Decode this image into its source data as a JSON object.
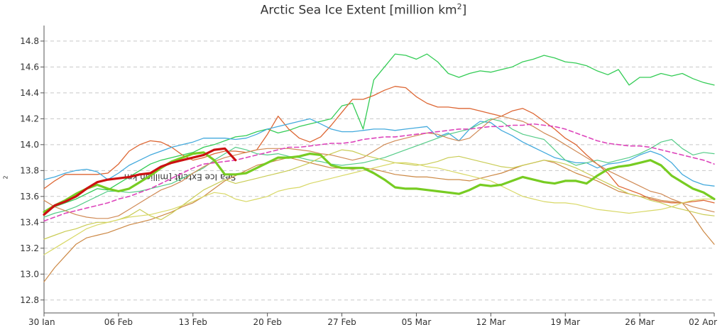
{
  "chart_data": {
    "type": "line",
    "title": "Arctic Sea Ice Extent [million km",
    "title_sup": "2",
    "title_end": "]",
    "ylabel": "Sea Ice Extent [million km",
    "ylabel_sup": "2",
    "ylabel_end": "]",
    "ylim": [
      12.7,
      14.92
    ],
    "xlim": [
      0,
      63
    ],
    "grid": true,
    "yticks": [
      12.8,
      13.0,
      13.2,
      13.4,
      13.6,
      13.8,
      14.0,
      14.2,
      14.4,
      14.6,
      14.8
    ],
    "xticks": [
      {
        "x": 0,
        "label": "30 Jan"
      },
      {
        "x": 7,
        "label": "06 Feb"
      },
      {
        "x": 14,
        "label": "13 Feb"
      },
      {
        "x": 21,
        "label": "20 Feb"
      },
      {
        "x": 28,
        "label": "27 Feb"
      },
      {
        "x": 35,
        "label": "05 Mar"
      },
      {
        "x": 42,
        "label": "12 Mar"
      },
      {
        "x": 49,
        "label": "19 Mar"
      },
      {
        "x": 56,
        "label": "26 Mar"
      },
      {
        "x": 63,
        "label": "02 Apr"
      }
    ],
    "series": [
      {
        "color": "#33cc55",
        "width": 1.3,
        "dash": "",
        "values": [
          13.47,
          13.52,
          13.55,
          13.58,
          13.62,
          13.66,
          13.65,
          13.7,
          13.75,
          13.8,
          13.85,
          13.88,
          13.9,
          13.92,
          13.94,
          13.98,
          14.0,
          14.03,
          14.06,
          14.07,
          14.1,
          14.12,
          14.09,
          14.11,
          14.14,
          14.16,
          14.18,
          14.2,
          14.3,
          14.32,
          14.12,
          14.5,
          14.6,
          14.7,
          14.69,
          14.66,
          14.7,
          14.64,
          14.55,
          14.52,
          14.55,
          14.57,
          14.56,
          14.58,
          14.6,
          14.64,
          14.66,
          14.69,
          14.67,
          14.64,
          14.63,
          14.61,
          14.57,
          14.54,
          14.58,
          14.46,
          14.52,
          14.52,
          14.55,
          14.53,
          14.55,
          14.51,
          14.48,
          14.46
        ]
      },
      {
        "color": "#dd6633",
        "width": 1.3,
        "dash": "",
        "values": [
          13.66,
          13.72,
          13.77,
          13.77,
          13.77,
          13.77,
          13.78,
          13.85,
          13.95,
          14.0,
          14.03,
          14.02,
          13.98,
          13.92,
          13.88,
          13.9,
          13.93,
          13.95,
          13.95,
          13.94,
          13.96,
          14.08,
          14.22,
          14.12,
          14.05,
          14.02,
          14.06,
          14.15,
          14.25,
          14.35,
          14.35,
          14.38,
          14.42,
          14.45,
          14.44,
          14.37,
          14.32,
          14.29,
          14.29,
          14.28,
          14.28,
          14.26,
          14.24,
          14.22,
          14.26,
          14.28,
          14.24,
          14.18,
          14.12,
          14.05,
          14.0,
          13.92,
          13.85,
          13.78,
          13.68,
          13.65,
          13.62,
          13.58,
          13.56,
          13.55,
          13.55,
          13.56,
          13.57,
          13.55
        ]
      },
      {
        "color": "#44aadd",
        "width": 1.3,
        "dash": "",
        "values": [
          13.73,
          13.75,
          13.78,
          13.8,
          13.81,
          13.79,
          13.73,
          13.78,
          13.84,
          13.88,
          13.92,
          13.95,
          13.98,
          14.0,
          14.02,
          14.05,
          14.05,
          14.05,
          14.04,
          14.05,
          14.08,
          14.12,
          14.14,
          14.16,
          14.18,
          14.2,
          14.16,
          14.12,
          14.1,
          14.1,
          14.11,
          14.12,
          14.12,
          14.11,
          14.12,
          14.13,
          14.14,
          14.06,
          14.09,
          14.03,
          14.12,
          14.18,
          14.17,
          14.11,
          14.07,
          14.02,
          13.98,
          13.94,
          13.9,
          13.88,
          13.86,
          13.86,
          13.82,
          13.85,
          13.86,
          13.88,
          13.92,
          13.95,
          13.92,
          13.86,
          13.77,
          13.72,
          13.69,
          13.68
        ]
      },
      {
        "color": "#55cc88",
        "width": 1.2,
        "dash": "",
        "values": [
          13.44,
          13.47,
          13.49,
          13.52,
          13.56,
          13.6,
          13.64,
          13.64,
          13.63,
          13.64,
          13.66,
          13.68,
          13.7,
          13.74,
          13.78,
          13.82,
          13.88,
          13.93,
          13.98,
          13.96,
          13.93,
          13.92,
          13.93,
          13.91,
          13.9,
          13.88,
          13.87,
          13.85,
          13.84,
          13.85,
          13.86,
          13.88,
          13.9,
          13.93,
          13.96,
          13.99,
          14.02,
          14.05,
          14.08,
          14.1,
          14.12,
          14.16,
          14.2,
          14.18,
          14.12,
          14.08,
          14.06,
          14.04,
          13.96,
          13.88,
          13.84,
          13.86,
          13.88,
          13.86,
          13.88,
          13.9,
          13.93,
          13.97,
          14.02,
          14.04,
          13.97,
          13.92,
          13.94,
          13.93
        ]
      },
      {
        "color": "#cc8844",
        "width": 1.2,
        "dash": "",
        "values": [
          12.94,
          13.05,
          13.14,
          13.23,
          13.28,
          13.3,
          13.32,
          13.35,
          13.38,
          13.4,
          13.42,
          13.45,
          13.48,
          13.52,
          13.55,
          13.6,
          13.66,
          13.72,
          13.76,
          13.8,
          13.84,
          13.86,
          13.88,
          13.9,
          13.88,
          13.86,
          13.84,
          13.82,
          13.82,
          13.81,
          13.82,
          13.81,
          13.79,
          13.77,
          13.76,
          13.75,
          13.75,
          13.74,
          13.73,
          13.73,
          13.72,
          13.74,
          13.76,
          13.78,
          13.81,
          13.84,
          13.86,
          13.88,
          13.86,
          13.82,
          13.78,
          13.75,
          13.72,
          13.68,
          13.64,
          13.62,
          13.6,
          13.59,
          13.57,
          13.56,
          13.55,
          13.45,
          13.33,
          13.23
        ]
      },
      {
        "color": "#d08a55",
        "width": 1.2,
        "dash": "",
        "values": [
          13.57,
          13.52,
          13.49,
          13.46,
          13.44,
          13.43,
          13.43,
          13.45,
          13.5,
          13.55,
          13.6,
          13.65,
          13.68,
          13.72,
          13.78,
          13.83,
          13.87,
          13.9,
          13.92,
          13.94,
          13.96,
          13.97,
          13.97,
          13.97,
          13.96,
          13.95,
          13.93,
          13.92,
          13.9,
          13.88,
          13.9,
          13.95,
          14.0,
          14.03,
          14.05,
          14.07,
          14.09,
          14.08,
          14.05,
          14.03,
          14.05,
          14.12,
          14.19,
          14.22,
          14.2,
          14.18,
          14.14,
          14.09,
          14.05,
          14.0,
          13.95,
          13.9,
          13.85,
          13.8,
          13.76,
          13.72,
          13.68,
          13.64,
          13.62,
          13.58,
          13.55,
          13.52,
          13.5,
          13.48
        ]
      },
      {
        "color": "#c9cc55",
        "width": 1.2,
        "dash": "",
        "values": [
          13.27,
          13.3,
          13.33,
          13.35,
          13.38,
          13.4,
          13.4,
          13.42,
          13.45,
          13.5,
          13.45,
          13.42,
          13.47,
          13.53,
          13.59,
          13.65,
          13.69,
          13.73,
          13.7,
          13.72,
          13.74,
          13.76,
          13.78,
          13.8,
          13.83,
          13.86,
          13.9,
          13.93,
          13.96,
          13.95,
          13.92,
          13.9,
          13.88,
          13.86,
          13.85,
          13.84,
          13.85,
          13.87,
          13.9,
          13.91,
          13.89,
          13.87,
          13.85,
          13.83,
          13.82,
          13.84,
          13.86,
          13.88,
          13.87,
          13.85,
          13.82,
          13.78,
          13.74,
          13.7,
          13.66,
          13.62,
          13.6,
          13.57,
          13.55,
          13.52,
          13.5,
          13.48,
          13.46,
          13.45
        ]
      },
      {
        "color": "#d8d866",
        "width": 1.2,
        "dash": "",
        "values": [
          13.15,
          13.2,
          13.25,
          13.3,
          13.35,
          13.38,
          13.4,
          13.42,
          13.44,
          13.45,
          13.46,
          13.48,
          13.5,
          13.53,
          13.56,
          13.6,
          13.63,
          13.62,
          13.58,
          13.56,
          13.58,
          13.6,
          13.64,
          13.66,
          13.67,
          13.7,
          13.72,
          13.74,
          13.76,
          13.78,
          13.8,
          13.82,
          13.84,
          13.86,
          13.86,
          13.85,
          13.83,
          13.82,
          13.8,
          13.78,
          13.76,
          13.74,
          13.72,
          13.68,
          13.64,
          13.6,
          13.58,
          13.56,
          13.55,
          13.55,
          13.54,
          13.52,
          13.5,
          13.49,
          13.48,
          13.47,
          13.48,
          13.49,
          13.5,
          13.52,
          13.55,
          13.57,
          13.58,
          13.58
        ]
      },
      {
        "color": "#dd44bb",
        "width": 1.6,
        "dash": "6,4",
        "values": [
          13.41,
          13.44,
          13.47,
          13.49,
          13.51,
          13.53,
          13.55,
          13.58,
          13.6,
          13.63,
          13.66,
          13.7,
          13.74,
          13.78,
          13.82,
          13.85,
          13.86,
          13.87,
          13.88,
          13.9,
          13.92,
          13.94,
          13.96,
          13.98,
          13.98,
          13.99,
          14.0,
          14.01,
          14.01,
          14.02,
          14.04,
          14.05,
          14.06,
          14.06,
          14.07,
          14.08,
          14.09,
          14.1,
          14.11,
          14.12,
          14.12,
          14.13,
          14.14,
          14.14,
          14.15,
          14.15,
          14.16,
          14.15,
          14.14,
          14.12,
          14.09,
          14.06,
          14.03,
          14.01,
          14.0,
          13.99,
          13.99,
          13.98,
          13.96,
          13.94,
          13.92,
          13.9,
          13.88,
          13.85
        ]
      },
      {
        "color": "#77cc22",
        "width": 3.2,
        "dash": "",
        "values": [
          13.48,
          13.53,
          13.57,
          13.62,
          13.66,
          13.69,
          13.66,
          13.64,
          13.66,
          13.71,
          13.76,
          13.82,
          13.87,
          13.9,
          13.93,
          13.94,
          13.88,
          13.77,
          13.77,
          13.78,
          13.82,
          13.86,
          13.9,
          13.9,
          13.91,
          13.93,
          13.92,
          13.84,
          13.82,
          13.82,
          13.82,
          13.78,
          13.73,
          13.67,
          13.66,
          13.66,
          13.65,
          13.64,
          13.63,
          13.62,
          13.65,
          13.69,
          13.68,
          13.69,
          13.72,
          13.75,
          13.73,
          13.71,
          13.7,
          13.72,
          13.72,
          13.7,
          13.76,
          13.81,
          13.83,
          13.84,
          13.86,
          13.88,
          13.84,
          13.76,
          13.71,
          13.66,
          13.63,
          13.58
        ]
      },
      {
        "color": "#cc1111",
        "width": 3.2,
        "dash": "",
        "values": [
          13.46,
          13.53,
          13.56,
          13.6,
          13.66,
          13.71,
          13.73,
          13.74,
          13.75,
          13.77,
          13.78,
          13.83,
          13.86,
          13.88,
          13.9,
          13.92,
          13.96,
          13.97,
          13.88
        ]
      }
    ]
  }
}
